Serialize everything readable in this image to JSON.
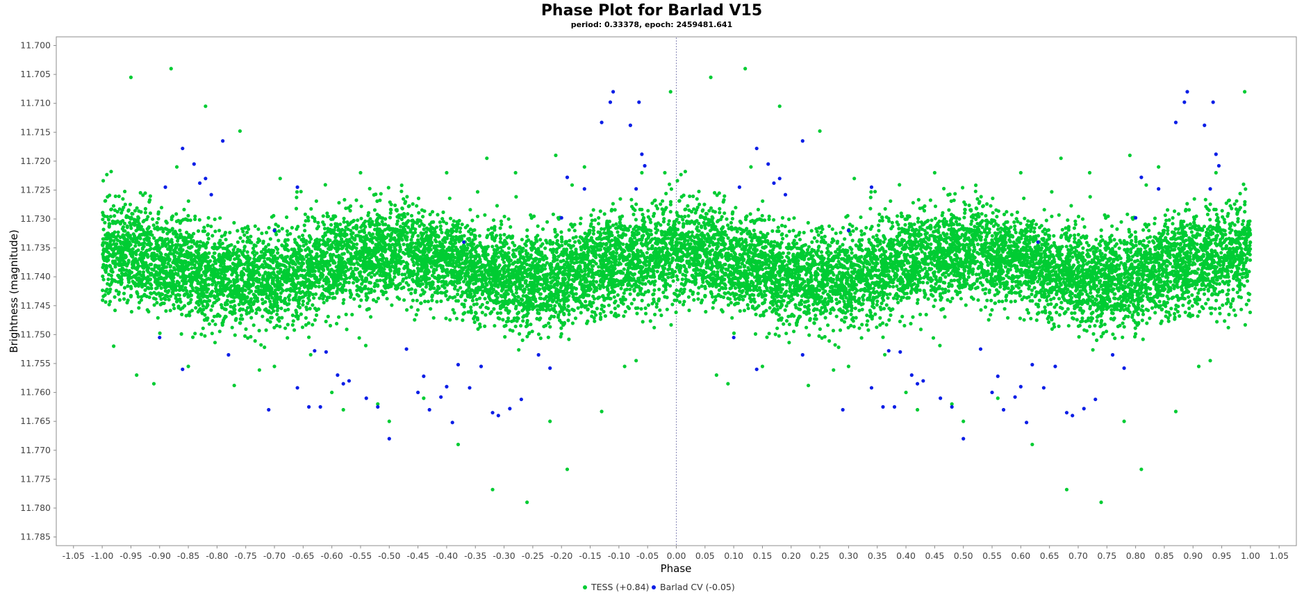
{
  "chart_data": {
    "type": "scatter",
    "title": "Phase Plot for Barlad V15",
    "subtitle": "period: 0.33378, epoch: 2459481.641",
    "xlabel": "Phase",
    "ylabel": "Brightness (magnitude)",
    "xlim": [
      -1.08,
      1.08
    ],
    "ylim": [
      11.6985,
      11.7865
    ],
    "y_inverted": true,
    "grid": false,
    "zero_line": true,
    "x_ticks": [
      "-1.05",
      "-1.00",
      "-0.95",
      "-0.90",
      "-0.85",
      "-0.80",
      "-0.75",
      "-0.70",
      "-0.65",
      "-0.60",
      "-0.55",
      "-0.50",
      "-0.45",
      "-0.40",
      "-0.35",
      "-0.30",
      "-0.25",
      "-0.20",
      "-0.15",
      "-0.10",
      "-0.05",
      "0.00",
      "0.05",
      "0.10",
      "0.15",
      "0.20",
      "0.25",
      "0.30",
      "0.35",
      "0.40",
      "0.45",
      "0.50",
      "0.55",
      "0.60",
      "0.65",
      "0.70",
      "0.75",
      "0.80",
      "0.85",
      "0.90",
      "0.95",
      "1.00",
      "1.05"
    ],
    "y_ticks": [
      "11.700",
      "11.705",
      "11.710",
      "11.715",
      "11.720",
      "11.725",
      "11.730",
      "11.735",
      "11.740",
      "11.745",
      "11.750",
      "11.755",
      "11.760",
      "11.765",
      "11.770",
      "11.775",
      "11.780",
      "11.785"
    ],
    "legend_position": "bottom",
    "phase_range": [
      -1.0,
      1.0
    ],
    "mirrored": true,
    "series": [
      {
        "name": "TESS (+0.84)",
        "color": "#00cc33",
        "dense_band": {
          "mean_magnitude": 11.738,
          "amplitude": 0.0025,
          "scatter": 0.0042,
          "count": 13000
        },
        "points": [
          [
            -0.95,
            11.7055
          ],
          [
            -0.88,
            11.704
          ],
          [
            -0.82,
            11.7105
          ],
          [
            -0.76,
            11.7148
          ],
          [
            -0.87,
            11.721
          ],
          [
            -0.98,
            11.752
          ],
          [
            -0.94,
            11.757
          ],
          [
            -0.91,
            11.7585
          ],
          [
            -0.85,
            11.7555
          ],
          [
            -0.77,
            11.7588
          ],
          [
            -0.7,
            11.7555
          ],
          [
            -0.6,
            11.76
          ],
          [
            -0.58,
            11.763
          ],
          [
            -0.52,
            11.762
          ],
          [
            -0.5,
            11.765
          ],
          [
            -0.44,
            11.761
          ],
          [
            -0.38,
            11.769
          ],
          [
            -0.32,
            11.7768
          ],
          [
            -0.26,
            11.779
          ],
          [
            -0.22,
            11.765
          ],
          [
            -0.19,
            11.7733
          ],
          [
            -0.13,
            11.7633
          ],
          [
            -0.09,
            11.7555
          ],
          [
            -0.33,
            11.7195
          ],
          [
            -0.4,
            11.722
          ],
          [
            -0.28,
            11.722
          ],
          [
            -0.21,
            11.719
          ],
          [
            -0.16,
            11.721
          ],
          [
            -0.69,
            11.723
          ],
          [
            -0.55,
            11.722
          ],
          [
            -0.06,
            11.722
          ],
          [
            -0.02,
            11.722
          ],
          [
            -0.01,
            11.708
          ],
          [
            0.06,
            11.7055
          ],
          [
            0.12,
            11.704
          ],
          [
            0.18,
            11.7105
          ],
          [
            0.25,
            11.7148
          ],
          [
            0.13,
            11.721
          ],
          [
            0.07,
            11.757
          ],
          [
            0.09,
            11.7585
          ],
          [
            0.15,
            11.7555
          ],
          [
            0.23,
            11.7588
          ],
          [
            0.3,
            11.7555
          ],
          [
            0.4,
            11.76
          ],
          [
            0.42,
            11.763
          ],
          [
            0.48,
            11.762
          ],
          [
            0.5,
            11.765
          ],
          [
            0.56,
            11.761
          ],
          [
            0.62,
            11.769
          ],
          [
            0.68,
            11.7768
          ],
          [
            0.74,
            11.779
          ],
          [
            0.78,
            11.765
          ],
          [
            0.81,
            11.7733
          ],
          [
            0.87,
            11.7633
          ],
          [
            0.91,
            11.7555
          ],
          [
            0.67,
            11.7195
          ],
          [
            0.6,
            11.722
          ],
          [
            0.72,
            11.722
          ],
          [
            0.79,
            11.719
          ],
          [
            0.84,
            11.721
          ],
          [
            0.31,
            11.723
          ],
          [
            0.45,
            11.722
          ],
          [
            0.94,
            11.722
          ],
          [
            0.99,
            11.708
          ],
          [
            0.93,
            11.7545
          ],
          [
            -0.07,
            11.7545
          ]
        ]
      },
      {
        "name": "Barlad CV (-0.05)",
        "color": "#0a1ee6",
        "points": [
          [
            -0.86,
            11.7178
          ],
          [
            -0.84,
            11.7205
          ],
          [
            -0.83,
            11.7238
          ],
          [
            -0.82,
            11.723
          ],
          [
            -0.81,
            11.7258
          ],
          [
            -0.79,
            11.7165
          ],
          [
            -0.89,
            11.7245
          ],
          [
            -0.9,
            11.7505
          ],
          [
            -0.86,
            11.756
          ],
          [
            -0.78,
            11.7535
          ],
          [
            -0.71,
            11.763
          ],
          [
            -0.66,
            11.7592
          ],
          [
            -0.64,
            11.7625
          ],
          [
            -0.62,
            11.7625
          ],
          [
            -0.63,
            11.7528
          ],
          [
            -0.61,
            11.753
          ],
          [
            -0.59,
            11.757
          ],
          [
            -0.58,
            11.7585
          ],
          [
            -0.57,
            11.758
          ],
          [
            -0.54,
            11.761
          ],
          [
            -0.52,
            11.7625
          ],
          [
            -0.5,
            11.768
          ],
          [
            -0.47,
            11.7525
          ],
          [
            -0.45,
            11.76
          ],
          [
            -0.44,
            11.7572
          ],
          [
            -0.43,
            11.763
          ],
          [
            -0.41,
            11.7608
          ],
          [
            -0.4,
            11.759
          ],
          [
            -0.39,
            11.7652
          ],
          [
            -0.38,
            11.7552
          ],
          [
            -0.36,
            11.7592
          ],
          [
            -0.34,
            11.7555
          ],
          [
            -0.32,
            11.7635
          ],
          [
            -0.31,
            11.764
          ],
          [
            -0.29,
            11.7628
          ],
          [
            -0.27,
            11.7612
          ],
          [
            -0.24,
            11.7535
          ],
          [
            -0.22,
            11.7558
          ],
          [
            -0.2,
            11.7298
          ],
          [
            -0.19,
            11.7228
          ],
          [
            -0.16,
            11.7248
          ],
          [
            -0.13,
            11.7133
          ],
          [
            -0.115,
            11.7098
          ],
          [
            -0.11,
            11.708
          ],
          [
            -0.08,
            11.7138
          ],
          [
            -0.065,
            11.7098
          ],
          [
            -0.06,
            11.7188
          ],
          [
            -0.055,
            11.7208
          ],
          [
            -0.07,
            11.7248
          ],
          [
            -0.66,
            11.7245
          ],
          [
            -0.37,
            11.734
          ],
          [
            -0.7,
            11.732
          ],
          [
            0.14,
            11.7178
          ],
          [
            0.16,
            11.7205
          ],
          [
            0.17,
            11.7238
          ],
          [
            0.18,
            11.723
          ],
          [
            0.19,
            11.7258
          ],
          [
            0.22,
            11.7165
          ],
          [
            0.11,
            11.7245
          ],
          [
            0.1,
            11.7505
          ],
          [
            0.14,
            11.756
          ],
          [
            0.22,
            11.7535
          ],
          [
            0.29,
            11.763
          ],
          [
            0.34,
            11.7592
          ],
          [
            0.36,
            11.7625
          ],
          [
            0.38,
            11.7625
          ],
          [
            0.37,
            11.7528
          ],
          [
            0.39,
            11.753
          ],
          [
            0.41,
            11.757
          ],
          [
            0.42,
            11.7585
          ],
          [
            0.43,
            11.758
          ],
          [
            0.46,
            11.761
          ],
          [
            0.48,
            11.7625
          ],
          [
            0.5,
            11.768
          ],
          [
            0.53,
            11.7525
          ],
          [
            0.55,
            11.76
          ],
          [
            0.56,
            11.7572
          ],
          [
            0.57,
            11.763
          ],
          [
            0.59,
            11.7608
          ],
          [
            0.6,
            11.759
          ],
          [
            0.61,
            11.7652
          ],
          [
            0.62,
            11.7552
          ],
          [
            0.64,
            11.7592
          ],
          [
            0.66,
            11.7555
          ],
          [
            0.68,
            11.7635
          ],
          [
            0.69,
            11.764
          ],
          [
            0.71,
            11.7628
          ],
          [
            0.73,
            11.7612
          ],
          [
            0.76,
            11.7535
          ],
          [
            0.78,
            11.7558
          ],
          [
            0.8,
            11.7298
          ],
          [
            0.81,
            11.7228
          ],
          [
            0.84,
            11.7248
          ],
          [
            0.87,
            11.7133
          ],
          [
            0.885,
            11.7098
          ],
          [
            0.89,
            11.708
          ],
          [
            0.92,
            11.7138
          ],
          [
            0.935,
            11.7098
          ],
          [
            0.94,
            11.7188
          ],
          [
            0.945,
            11.7208
          ],
          [
            0.93,
            11.7248
          ],
          [
            0.34,
            11.7245
          ],
          [
            0.63,
            11.734
          ],
          [
            0.3,
            11.732
          ]
        ]
      }
    ]
  }
}
